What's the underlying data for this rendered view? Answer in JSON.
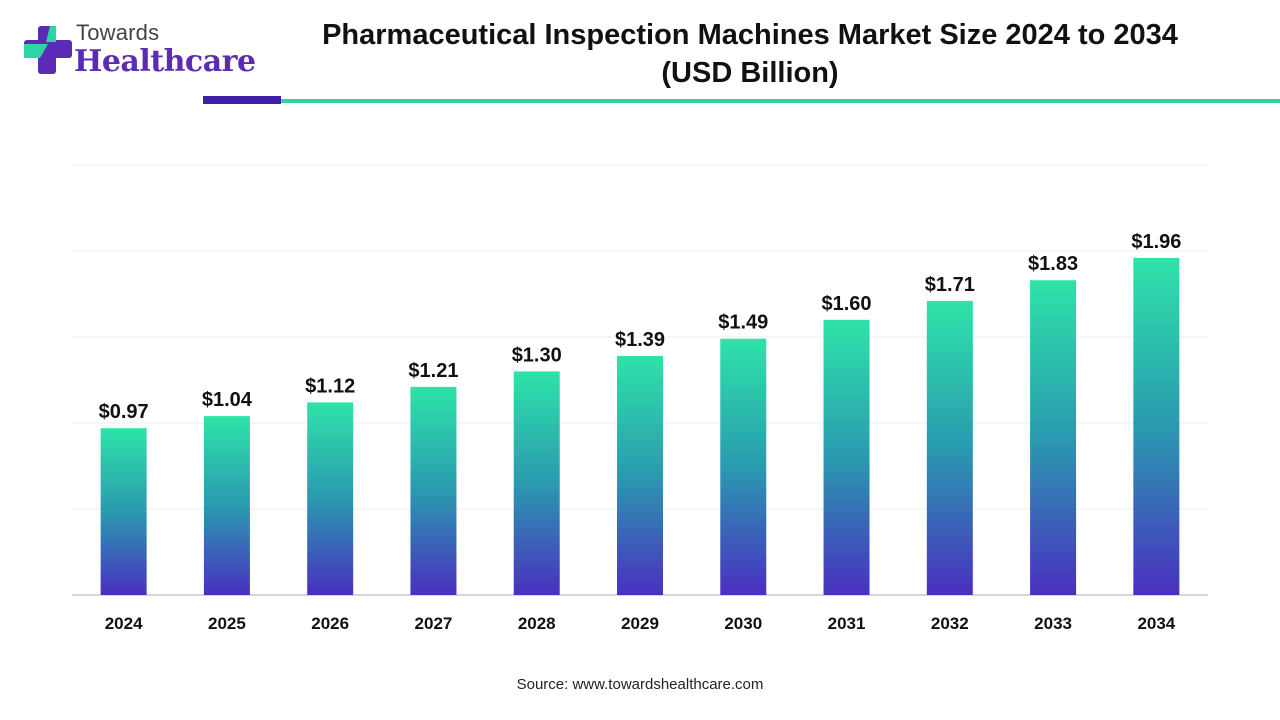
{
  "brand": {
    "name_top": "Towards",
    "name_bottom": "Healthcare"
  },
  "colors": {
    "bar_top": "#2ee3a8",
    "bar_mid": "#2a9ab0",
    "bar_bottom": "#4a2fc0",
    "accent_purple": "#3c1ea8",
    "accent_green": "#2dd4a4"
  },
  "chart_data": {
    "type": "bar",
    "title": "Pharmaceutical Inspection Machines Market Size 2024 to 2034",
    "subtitle": "(USD Billion)",
    "categories": [
      "2024",
      "2025",
      "2026",
      "2027",
      "2028",
      "2029",
      "2030",
      "2031",
      "2032",
      "2033",
      "2034"
    ],
    "values": [
      0.97,
      1.04,
      1.12,
      1.21,
      1.3,
      1.39,
      1.49,
      1.6,
      1.71,
      1.83,
      1.96
    ],
    "value_labels": [
      "$0.97",
      "$1.04",
      "$1.12",
      "$1.21",
      "$1.30",
      "$1.39",
      "$1.49",
      "$1.60",
      "$1.71",
      "$1.83",
      "$1.96"
    ],
    "xlabel": "",
    "ylabel": "",
    "ylim": [
      0,
      2.5
    ],
    "grid": true,
    "legend": "none"
  },
  "source": "Source: www.towardshealthcare.com"
}
